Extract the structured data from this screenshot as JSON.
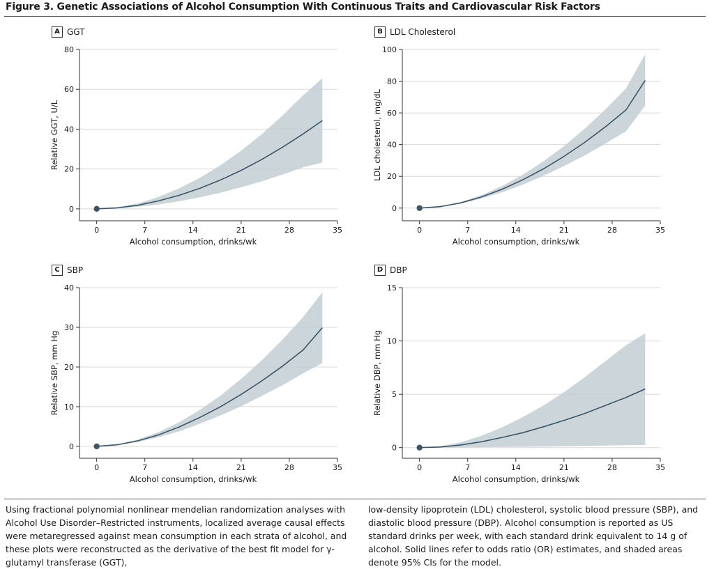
{
  "figure_title": "Figure 3. Genetic Associations of Alcohol Consumption With Continuous Traits and Cardiovascular Risk Factors",
  "caption_left": "Using fractional polynomial nonlinear mendelian randomization analyses with Alcohol Use Disorder–Restricted instruments, localized average causal effects were metaregressed against mean consumption in each strata of alcohol, and these plots were reconstructed as the derivative of the best fit model for γ-glutamyl transferase (GGT),",
  "caption_right": "low-density lipoprotein (LDL) cholesterol, systolic blood pressure (SBP), and diastolic blood pressure (DBP). Alcohol consumption is reported as US standard drinks per week, with each standard drink equivalent to 14 g of alcohol. Solid lines refer to odds ratio (OR) estimates, and shaded areas denote 95% CIs for the model.",
  "colors": {
    "line": "#3d5566",
    "band": "#c6d0d6",
    "grid": "#d8d8d8",
    "point": "#3d5566"
  },
  "chart_data": [
    {
      "type": "line",
      "panel_letter": "A",
      "panel_name": "GGT",
      "xlabel": "Alcohol consumption, drinks/wk",
      "ylabel": "Relative GGT, U/L",
      "xlim": [
        -2.5,
        35
      ],
      "ylim": [
        -6,
        80
      ],
      "xticks": [
        0,
        7,
        14,
        21,
        28,
        35
      ],
      "yticks": [
        0,
        20,
        40,
        60,
        80
      ],
      "x": [
        0,
        3,
        6,
        9,
        12,
        15,
        18,
        21,
        24,
        27,
        30,
        32.8
      ],
      "y": [
        0,
        0.5,
        1.8,
        4.0,
        6.8,
        10.3,
        14.5,
        19.3,
        24.8,
        30.9,
        37.6,
        44.3
      ],
      "ci_lower": [
        0,
        0.3,
        1.0,
        2.2,
        3.8,
        5.8,
        8.1,
        10.8,
        13.8,
        17.2,
        20.8,
        23.2
      ],
      "ci_upper": [
        0,
        0.7,
        2.7,
        6.0,
        10.3,
        15.6,
        21.9,
        29.2,
        37.5,
        46.8,
        57.0,
        65.5
      ],
      "origin_point": [
        0,
        0
      ]
    },
    {
      "type": "line",
      "panel_letter": "B",
      "panel_name": "LDL Cholesterol",
      "xlabel": "Alcohol consumption, drinks/wk",
      "ylabel": "LDL cholesterol, mg/dL",
      "xlim": [
        -2.5,
        35
      ],
      "ylim": [
        -8,
        100
      ],
      "xticks": [
        0,
        7,
        14,
        21,
        28,
        35
      ],
      "yticks": [
        0,
        20,
        40,
        60,
        80,
        100
      ],
      "x": [
        0,
        3,
        6,
        9,
        12,
        15,
        18,
        21,
        24,
        27,
        30,
        32.8
      ],
      "y": [
        0,
        0.9,
        3.3,
        7.0,
        11.9,
        17.8,
        24.7,
        32.6,
        41.4,
        51.2,
        61.8,
        80.5
      ],
      "ci_lower": [
        0,
        0.8,
        2.9,
        6.0,
        10.0,
        14.8,
        20.3,
        26.5,
        33.2,
        40.6,
        48.4,
        64.5
      ],
      "ci_upper": [
        0,
        1.0,
        3.8,
        8.1,
        13.9,
        21.0,
        29.4,
        39.1,
        50.0,
        62.1,
        75.4,
        97.0
      ],
      "origin_point": [
        0,
        0
      ]
    },
    {
      "type": "line",
      "panel_letter": "C",
      "panel_name": "SBP",
      "xlabel": "Alcohol consumption, drinks/wk",
      "ylabel": "Relative SBP, mm Hg",
      "xlim": [
        -2.5,
        35
      ],
      "ylim": [
        -3,
        40
      ],
      "xticks": [
        0,
        7,
        14,
        21,
        28,
        35
      ],
      "yticks": [
        0,
        10,
        20,
        30,
        40
      ],
      "x": [
        0,
        3,
        6,
        9,
        12,
        15,
        18,
        21,
        24,
        27,
        30,
        32.8
      ],
      "y": [
        0,
        0.4,
        1.4,
        2.9,
        4.9,
        7.3,
        10.0,
        13.1,
        16.5,
        20.2,
        24.3,
        29.9
      ],
      "ci_lower": [
        0,
        0.3,
        1.1,
        2.3,
        3.8,
        5.7,
        7.8,
        10.1,
        12.7,
        15.4,
        18.4,
        21.0
      ],
      "ci_upper": [
        0,
        0.5,
        1.7,
        3.6,
        6.1,
        9.2,
        12.8,
        17.0,
        21.7,
        26.9,
        32.6,
        38.8
      ],
      "origin_point": [
        0,
        0
      ]
    },
    {
      "type": "line",
      "panel_letter": "D",
      "panel_name": "DBP",
      "xlabel": "Alcohol consumption, drinks/wk",
      "ylabel": "Relative DBP, mm Hg",
      "xlim": [
        -2.5,
        35
      ],
      "ylim": [
        -1,
        15
      ],
      "xticks": [
        0,
        7,
        14,
        21,
        28,
        35
      ],
      "yticks": [
        0,
        5,
        10,
        15
      ],
      "x": [
        0,
        3,
        6,
        9,
        12,
        15,
        18,
        21,
        24,
        27,
        30,
        32.8
      ],
      "y": [
        0,
        0.06,
        0.25,
        0.55,
        0.95,
        1.4,
        1.95,
        2.55,
        3.2,
        3.95,
        4.7,
        5.5
      ],
      "ci_lower": [
        0,
        0.0,
        0.02,
        0.04,
        0.06,
        0.08,
        0.1,
        0.13,
        0.16,
        0.19,
        0.22,
        0.25
      ],
      "ci_upper": [
        0,
        0.12,
        0.5,
        1.1,
        1.9,
        2.85,
        3.95,
        5.2,
        6.6,
        8.1,
        9.6,
        10.7
      ],
      "origin_point": [
        0,
        0
      ]
    }
  ]
}
